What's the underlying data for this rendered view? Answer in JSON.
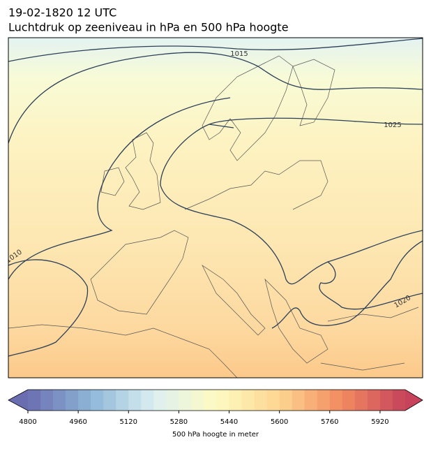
{
  "header": {
    "title": "19-02-1820 12 UTC",
    "subtitle": "Luchtdruk op zeeniveau in hPa en 500 hPa hoogte"
  },
  "map": {
    "contour_labels": [
      "1015",
      "1025",
      "1010",
      "1020"
    ]
  },
  "colorbar": {
    "label": "500 hPa hoogte in meter",
    "lim": [
      4800,
      6000
    ],
    "step": 40,
    "ticks": [
      4800,
      4960,
      5120,
      5280,
      5440,
      5600,
      5760,
      5920
    ],
    "colormap": [
      "#6a6eb0",
      "#8db6d7",
      "#dbeff2",
      "#fefbc2",
      "#fdd590",
      "#f28a60",
      "#c6435b"
    ]
  }
}
